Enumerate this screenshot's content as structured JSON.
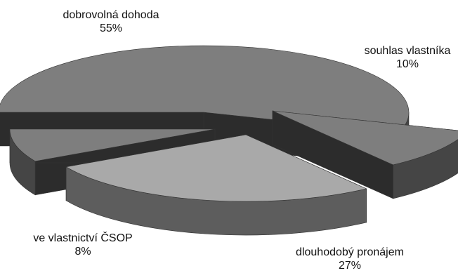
{
  "chart_data": {
    "type": "pie",
    "style": "3d-exploded",
    "slices": [
      {
        "label": "dobrovolná dohoda",
        "value": 55,
        "value_text": "55%",
        "color": "#7e7e7e"
      },
      {
        "label": "souhlas vlastníka",
        "value": 10,
        "value_text": "10%",
        "color": "#7e7e7e"
      },
      {
        "label": "dlouhodobý pronájem",
        "value": 27,
        "value_text": "27%",
        "color": "#a9a9a9"
      },
      {
        "label": "ve vlastnictví ČSOP",
        "value": 8,
        "value_text": "8%",
        "color": "#7e7e7e"
      }
    ]
  }
}
